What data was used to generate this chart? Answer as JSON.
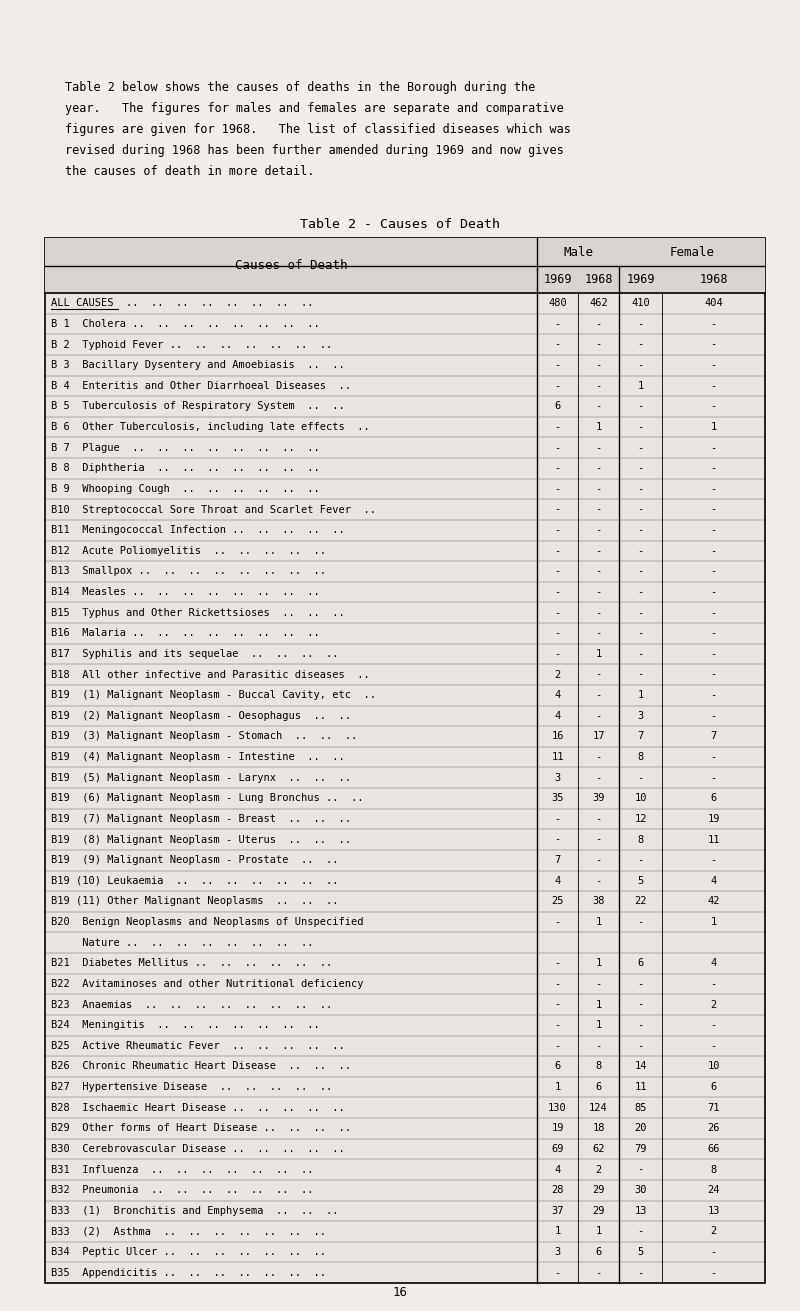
{
  "intro_text": "Table 2 below shows the causes of deaths in the Borough during the\nyear.   The figures for males and females are separate and comparative\nfigures are given for 1968.   The list of classified diseases which was\nrevised during 1968 has been further amended during 1969 and now gives\nthe causes of death in more detail.",
  "table_title": "Table 2 - Causes of Death",
  "rows": [
    [
      "ALL CAUSES  ..  ..  ..  ..  ..  ..  ..  ..",
      "480",
      "462",
      "410",
      "404",
      true
    ],
    [
      "B 1  Cholera ..  ..  ..  ..  ..  ..  ..  ..",
      "-",
      "-",
      "-",
      "-",
      false
    ],
    [
      "B 2  Typhoid Fever ..  ..  ..  ..  ..  ..  ..",
      "-",
      "-",
      "-",
      "-",
      false
    ],
    [
      "B 3  Bacillary Dysentery and Amoebiasis  ..  ..",
      "-",
      "-",
      "-",
      "-",
      false
    ],
    [
      "B 4  Enteritis and Other Diarrhoeal Diseases  ..",
      "-",
      "-",
      "1",
      "-",
      false
    ],
    [
      "B 5  Tuberculosis of Respiratory System  ..  ..",
      "6",
      "-",
      "-",
      "-",
      false
    ],
    [
      "B 6  Other Tuberculosis, including late effects  ..",
      "-",
      "1",
      "-",
      "1",
      false
    ],
    [
      "B 7  Plague  ..  ..  ..  ..  ..  ..  ..  ..",
      "-",
      "-",
      "-",
      "-",
      false
    ],
    [
      "B 8  Diphtheria  ..  ..  ..  ..  ..  ..  ..",
      "-",
      "-",
      "-",
      "-",
      false
    ],
    [
      "B 9  Whooping Cough  ..  ..  ..  ..  ..  ..",
      "-",
      "-",
      "-",
      "-",
      false
    ],
    [
      "B10  Streptococcal Sore Throat and Scarlet Fever  ..",
      "-",
      "-",
      "-",
      "-",
      false
    ],
    [
      "B11  Meningococcal Infection ..  ..  ..  ..  ..",
      "-",
      "-",
      "-",
      "-",
      false
    ],
    [
      "B12  Acute Poliomyelitis  ..  ..  ..  ..  ..",
      "-",
      "-",
      "-",
      "-",
      false
    ],
    [
      "B13  Smallpox ..  ..  ..  ..  ..  ..  ..  ..",
      "-",
      "-",
      "-",
      "-",
      false
    ],
    [
      "B14  Measles ..  ..  ..  ..  ..  ..  ..  ..",
      "-",
      "-",
      "-",
      "-",
      false
    ],
    [
      "B15  Typhus and Other Rickettsioses  ..  ..  ..",
      "-",
      "-",
      "-",
      "-",
      false
    ],
    [
      "B16  Malaria ..  ..  ..  ..  ..  ..  ..  ..",
      "-",
      "-",
      "-",
      "-",
      false
    ],
    [
      "B17  Syphilis and its sequelae  ..  ..  ..  ..",
      "-",
      "1",
      "-",
      "-",
      false
    ],
    [
      "B18  All other infective and Parasitic diseases  ..",
      "2",
      "-",
      "-",
      "-",
      false
    ],
    [
      "B19  (1) Malignant Neoplasm - Buccal Cavity, etc  ..",
      "4",
      "-",
      "1",
      "-",
      false
    ],
    [
      "B19  (2) Malignant Neoplasm - Oesophagus  ..  ..",
      "4",
      "-",
      "3",
      "-",
      false
    ],
    [
      "B19  (3) Malignant Neoplasm - Stomach  ..  ..  ..",
      "16",
      "17",
      "7",
      "7",
      false
    ],
    [
      "B19  (4) Malignant Neoplasm - Intestine  ..  ..",
      "11",
      "-",
      "8",
      "-",
      false
    ],
    [
      "B19  (5) Malignant Neoplasm - Larynx  ..  ..  ..",
      "3",
      "-",
      "-",
      "-",
      false
    ],
    [
      "B19  (6) Malignant Neoplasm - Lung Bronchus ..  ..",
      "35",
      "39",
      "10",
      "6",
      false
    ],
    [
      "B19  (7) Malignant Neoplasm - Breast  ..  ..  ..",
      "-",
      "-",
      "12",
      "19",
      false
    ],
    [
      "B19  (8) Malignant Neoplasm - Uterus  ..  ..  ..",
      "-",
      "-",
      "8",
      "11",
      false
    ],
    [
      "B19  (9) Malignant Neoplasm - Prostate  ..  ..",
      "7",
      "-",
      "-",
      "-",
      false
    ],
    [
      "B19 (10) Leukaemia  ..  ..  ..  ..  ..  ..  ..",
      "4",
      "-",
      "5",
      "4",
      false
    ],
    [
      "B19 (11) Other Malignant Neoplasms  ..  ..  ..",
      "25",
      "38",
      "22",
      "42",
      false
    ],
    [
      "B20  Benign Neoplasms and Neoplasms of Unspecified",
      "-",
      "1",
      "-",
      "1",
      false
    ],
    [
      "     Nature ..  ..  ..  ..  ..  ..  ..  ..",
      "",
      "",
      "",
      "",
      false
    ],
    [
      "B21  Diabetes Mellitus ..  ..  ..  ..  ..  ..",
      "-",
      "1",
      "6",
      "4",
      false
    ],
    [
      "B22  Avitaminoses and other Nutritional deficiency",
      "-",
      "-",
      "-",
      "-",
      false
    ],
    [
      "B23  Anaemias  ..  ..  ..  ..  ..  ..  ..  ..",
      "-",
      "1",
      "-",
      "2",
      false
    ],
    [
      "B24  Meningitis  ..  ..  ..  ..  ..  ..  ..",
      "-",
      "1",
      "-",
      "-",
      false
    ],
    [
      "B25  Active Rheumatic Fever  ..  ..  ..  ..  ..",
      "-",
      "-",
      "-",
      "-",
      false
    ],
    [
      "B26  Chronic Rheumatic Heart Disease  ..  ..  ..",
      "6",
      "8",
      "14",
      "10",
      false
    ],
    [
      "B27  Hypertensive Disease  ..  ..  ..  ..  ..",
      "1",
      "6",
      "11",
      "6",
      false
    ],
    [
      "B28  Ischaemic Heart Disease ..  ..  ..  ..  ..",
      "130",
      "124",
      "85",
      "71",
      false
    ],
    [
      "B29  Other forms of Heart Disease ..  ..  ..  ..",
      "19",
      "18",
      "20",
      "26",
      false
    ],
    [
      "B30  Cerebrovascular Disease ..  ..  ..  ..  ..",
      "69",
      "62",
      "79",
      "66",
      false
    ],
    [
      "B31  Influenza  ..  ..  ..  ..  ..  ..  ..",
      "4",
      "2",
      "-",
      "8",
      false
    ],
    [
      "B32  Pneumonia  ..  ..  ..  ..  ..  ..  ..",
      "28",
      "29",
      "30",
      "24",
      false
    ],
    [
      "B33  (1)  Bronchitis and Emphysema  ..  ..  ..",
      "37",
      "29",
      "13",
      "13",
      false
    ],
    [
      "B33  (2)  Asthma  ..  ..  ..  ..  ..  ..  ..",
      "1",
      "1",
      "-",
      "2",
      false
    ],
    [
      "B34  Peptic Ulcer ..  ..  ..  ..  ..  ..  ..",
      "3",
      "6",
      "5",
      "-",
      false
    ],
    [
      "B35  Appendicitis ..  ..  ..  ..  ..  ..  ..",
      "-",
      "-",
      "-",
      "-",
      false
    ]
  ],
  "page_number": "16",
  "bg_color": "#f0ede8",
  "table_bg": "#e8e5e0"
}
